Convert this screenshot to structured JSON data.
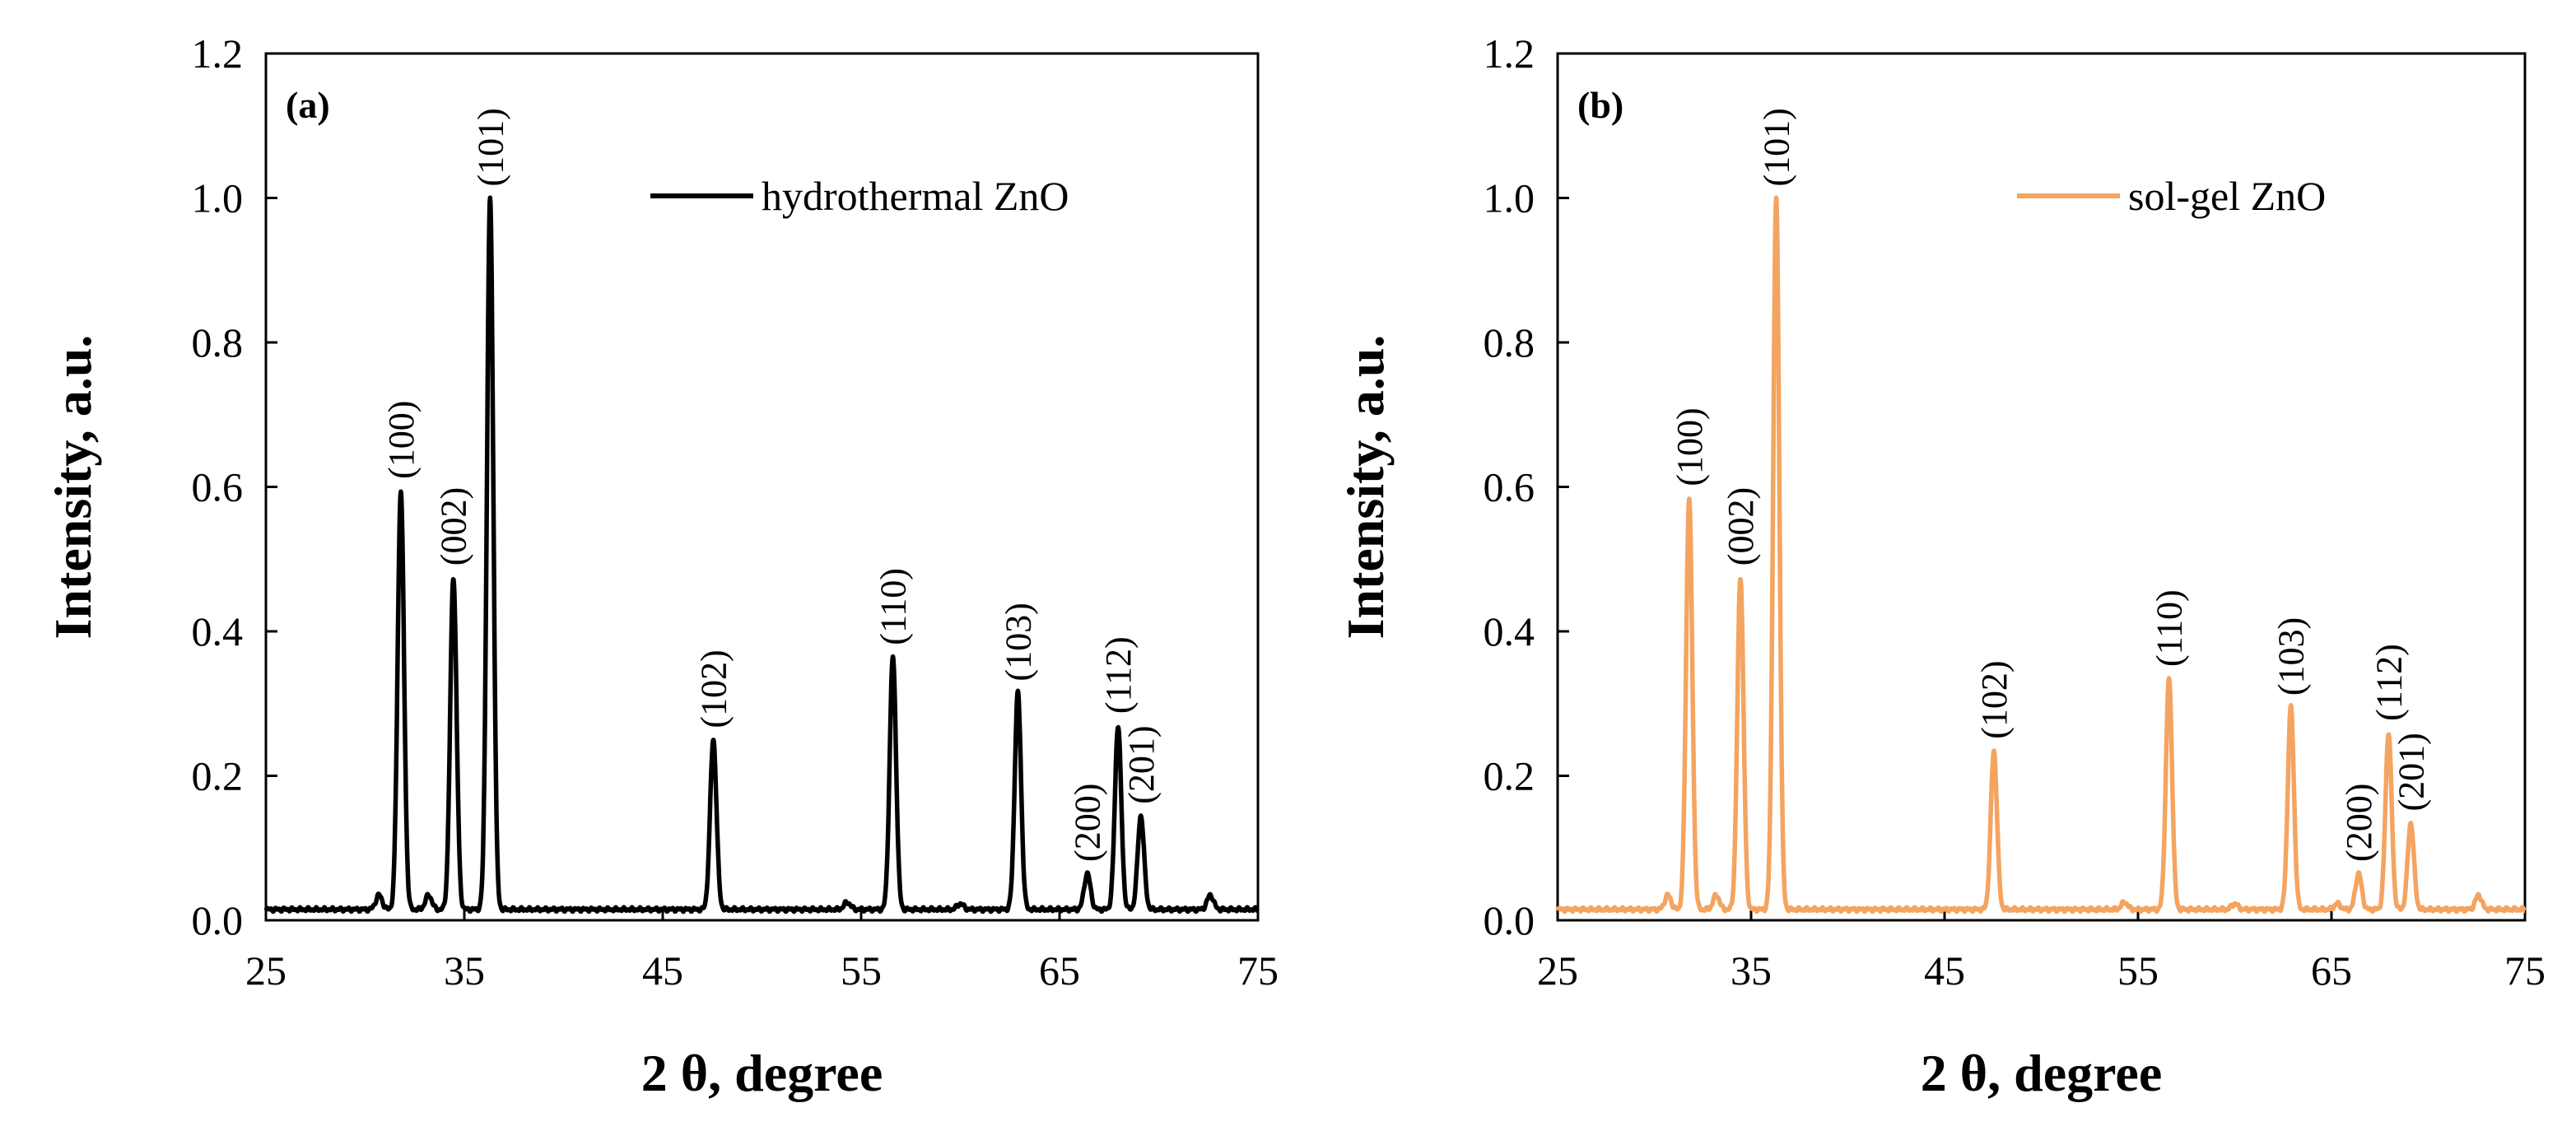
{
  "chart_data": [
    {
      "type": "line",
      "panel_label": "(a)",
      "xlabel": "2 θ, degree",
      "ylabel": "Intensity, a.u.",
      "xlim": [
        25,
        75
      ],
      "ylim": [
        0,
        1.2
      ],
      "xticks": [
        "25",
        "35",
        "45",
        "55",
        "65",
        "75"
      ],
      "yticks": [
        "0.0",
        "0.2",
        "0.4",
        "0.6",
        "0.8",
        "1.0",
        "1.2"
      ],
      "legend": "top-right",
      "series": [
        {
          "name": "hydrothermal ZnO",
          "color": "#000000",
          "baseline": 0.015,
          "peaks": [
            {
              "x": 30.7,
              "h": 0.02
            },
            {
              "x": 31.8,
              "h": 0.58,
              "label": "(100)"
            },
            {
              "x": 33.2,
              "h": 0.02
            },
            {
              "x": 34.45,
              "h": 0.46,
              "label": "(002)"
            },
            {
              "x": 36.3,
              "h": 0.985,
              "label": "(101)"
            },
            {
              "x": 47.55,
              "h": 0.235,
              "label": "(102)"
            },
            {
              "x": 54.3,
              "h": 0.01
            },
            {
              "x": 56.6,
              "h": 0.35,
              "label": "(110)"
            },
            {
              "x": 60.0,
              "h": 0.008
            },
            {
              "x": 62.9,
              "h": 0.3,
              "label": "(103)"
            },
            {
              "x": 66.4,
              "h": 0.05,
              "label": "(200)"
            },
            {
              "x": 67.95,
              "h": 0.255,
              "label": "(112)"
            },
            {
              "x": 69.1,
              "h": 0.13,
              "label": "(201)"
            },
            {
              "x": 72.6,
              "h": 0.02
            }
          ]
        }
      ]
    },
    {
      "type": "line",
      "panel_label": "(b)",
      "xlabel": "2 θ, degree",
      "ylabel": "Intensity, a.u.",
      "xlim": [
        25,
        75
      ],
      "ylim": [
        0,
        1.2
      ],
      "xticks": [
        "25",
        "35",
        "45",
        "55",
        "65",
        "75"
      ],
      "yticks": [
        "0.0",
        "0.2",
        "0.4",
        "0.6",
        "0.8",
        "1.0",
        "1.2"
      ],
      "legend": "top-right",
      "series": [
        {
          "name": "sol-gel ZnO",
          "color": "#F4A460",
          "baseline": 0.015,
          "peaks": [
            {
              "x": 30.7,
              "h": 0.02
            },
            {
              "x": 31.8,
              "h": 0.57,
              "label": "(100)"
            },
            {
              "x": 33.2,
              "h": 0.02
            },
            {
              "x": 34.45,
              "h": 0.46,
              "label": "(002)"
            },
            {
              "x": 36.3,
              "h": 0.985,
              "label": "(101)"
            },
            {
              "x": 47.55,
              "h": 0.22,
              "label": "(102)"
            },
            {
              "x": 54.3,
              "h": 0.01
            },
            {
              "x": 56.6,
              "h": 0.32,
              "label": "(110)"
            },
            {
              "x": 60.0,
              "h": 0.008
            },
            {
              "x": 62.9,
              "h": 0.28,
              "label": "(103)"
            },
            {
              "x": 65.3,
              "h": 0.008
            },
            {
              "x": 66.4,
              "h": 0.05,
              "label": "(200)"
            },
            {
              "x": 67.95,
              "h": 0.245,
              "label": "(112)"
            },
            {
              "x": 69.1,
              "h": 0.12,
              "label": "(201)"
            },
            {
              "x": 72.6,
              "h": 0.02
            }
          ]
        }
      ]
    }
  ]
}
